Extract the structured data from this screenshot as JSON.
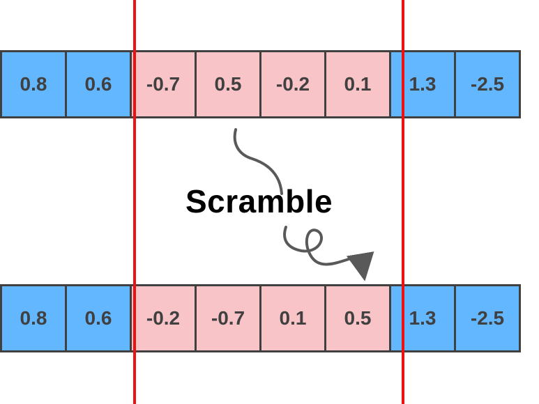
{
  "original_row": {
    "cells": [
      {
        "value": "0.8",
        "group": "outside"
      },
      {
        "value": "0.6",
        "group": "outside"
      },
      {
        "value": "-0.7",
        "group": "inside"
      },
      {
        "value": "0.5",
        "group": "inside"
      },
      {
        "value": "-0.2",
        "group": "inside"
      },
      {
        "value": "0.1",
        "group": "inside"
      },
      {
        "value": "1.3",
        "group": "outside"
      },
      {
        "value": "-2.5",
        "group": "outside"
      }
    ]
  },
  "scrambled_row": {
    "cells": [
      {
        "value": "0.8",
        "group": "outside"
      },
      {
        "value": "0.6",
        "group": "outside"
      },
      {
        "value": "-0.2",
        "group": "inside"
      },
      {
        "value": "-0.7",
        "group": "inside"
      },
      {
        "value": "0.1",
        "group": "inside"
      },
      {
        "value": "0.5",
        "group": "inside"
      },
      {
        "value": "1.3",
        "group": "outside"
      },
      {
        "value": "-2.5",
        "group": "outside"
      }
    ]
  },
  "label": "Scramble",
  "colors": {
    "outside_cell": "#63b7ff",
    "inside_cell": "#f9c4c8",
    "divider": "#ee1111",
    "cell_border": "#404040",
    "arrow": "#595959"
  },
  "icons": {
    "arrow": "squiggly-arrow-icon"
  }
}
